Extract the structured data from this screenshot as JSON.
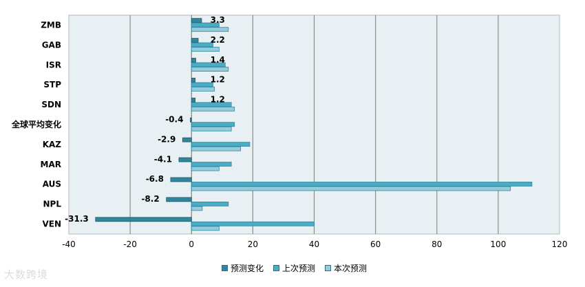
{
  "chart_data": {
    "type": "bar",
    "orientation": "horizontal",
    "categories": [
      "ZMB",
      "GAB",
      "ISR",
      "STP",
      "SDN",
      "全球平均变化",
      "KAZ",
      "MAR",
      "AUS",
      "NPL",
      "VEN"
    ],
    "series": [
      {
        "name": "预测变化",
        "values": [
          3.3,
          2.2,
          1.4,
          1.2,
          1.2,
          -0.4,
          -2.9,
          -4.1,
          -6.8,
          -8.2,
          -31.3
        ],
        "color": "#31859c"
      },
      {
        "name": "上次预测",
        "values": [
          9,
          7,
          11,
          7,
          13,
          14,
          19,
          13,
          111,
          12,
          40
        ],
        "color": "#4bacc6"
      },
      {
        "name": "本次预测",
        "values": [
          12,
          9,
          12,
          7.5,
          14,
          13,
          16,
          9,
          104,
          3.5,
          9
        ],
        "color": "#93cddd"
      }
    ],
    "data_labels": [
      "3.3",
      "2.2",
      "1.4",
      "1.2",
      "1.2",
      "-0.4",
      "-2.9",
      "-4.1",
      "-6.8",
      "-8.2",
      "-31.3"
    ],
    "xlim": [
      -40,
      120
    ],
    "xticks": [
      -40,
      -20,
      0,
      20,
      40,
      60,
      80,
      100,
      120
    ],
    "xtick_labels": [
      "-40",
      "-20",
      "0",
      "20",
      "40",
      "60",
      "80",
      "100",
      "120"
    ],
    "grid": true,
    "legend_position": "bottom",
    "plot_background": "#e8f0f3",
    "title": "",
    "xlabel": "",
    "ylabel": ""
  },
  "watermark": "大数跨境"
}
